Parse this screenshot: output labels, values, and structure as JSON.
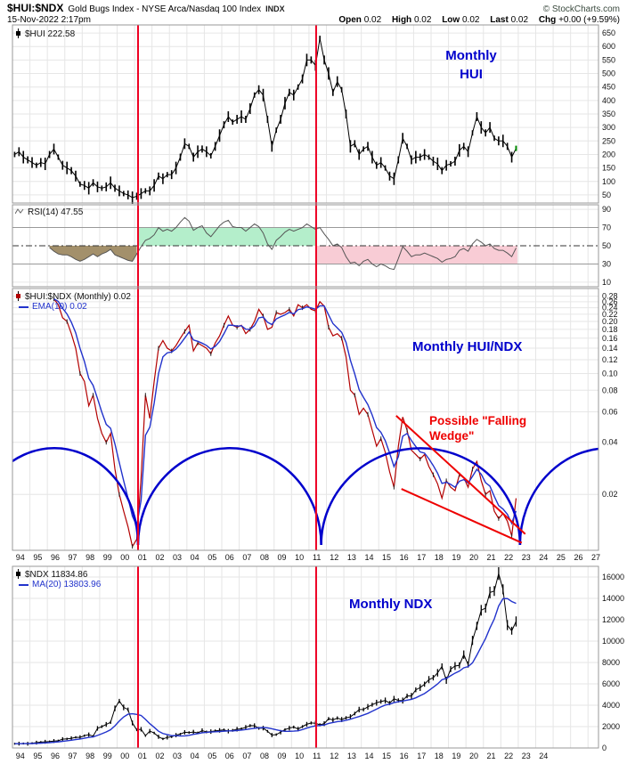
{
  "header": {
    "symbol": "$HUI:$NDX",
    "description": "Gold Bugs Index - NYSE Arca/Nasdaq 100 Index",
    "exchange": "INDX",
    "copyright": "© StockCharts.com",
    "datetime": "15-Nov-2022 2:17pm",
    "quote": {
      "open_label": "Open",
      "open": "0.02",
      "high_label": "High",
      "high": "0.02",
      "low_label": "Low",
      "low": "0.02",
      "last_label": "Last",
      "last": "0.02",
      "chg_label": "Chg",
      "chg": "+0.00 (+9.59%)"
    }
  },
  "annotations": {
    "monthly_hui_l1": "Monthly",
    "monthly_hui_l2": "HUI",
    "monthly_huindx": "Monthly HUI/NDX",
    "falling_wedge": "Possible \"Falling Wedge\"",
    "monthly_ndx": "Monthly NDX",
    "red_vlines": [
      2001.2,
      2011.41
    ],
    "red_vline_color": "#ee0022",
    "arcs": {
      "spans": [
        [
          1991.6,
          2001.2
        ],
        [
          2001.2,
          2011.7
        ],
        [
          2011.7,
          2023.1
        ],
        [
          2023.1,
          2033.2
        ]
      ],
      "peak_value": 0.037,
      "color": "#0000cc"
    },
    "wedge_lines": [
      [
        2016.0,
        0.057,
        2023.4,
        0.0118
      ],
      [
        2016.3,
        0.0215,
        2023.2,
        0.0105
      ]
    ],
    "wedge_color": "#ee0000"
  },
  "xaxis": {
    "top_labels": [
      "94",
      "95",
      "96",
      "97",
      "98",
      "99",
      "00",
      "01",
      "02",
      "03",
      "04",
      "05",
      "06",
      "07",
      "08",
      "09",
      "10",
      "11",
      "12",
      "13",
      "14",
      "15",
      "16",
      "17",
      "18",
      "19",
      "20",
      "21",
      "22",
      "23",
      "24",
      "25",
      "26",
      "27"
    ],
    "bottom_labels": [
      "94",
      "95",
      "96",
      "97",
      "98",
      "99",
      "00",
      "01",
      "02",
      "03",
      "04",
      "05",
      "06",
      "07",
      "08",
      "09",
      "10",
      "11",
      "12",
      "13",
      "14",
      "15",
      "16",
      "17",
      "18",
      "19",
      "20",
      "21",
      "22",
      "23",
      "24"
    ]
  },
  "chart_data": [
    {
      "name": "hui",
      "type": "candlestick",
      "title": "$HUI 222.58",
      "scale": "linear",
      "ylim": [
        20,
        680
      ],
      "yticks": [
        50,
        100,
        150,
        200,
        250,
        300,
        350,
        400,
        450,
        500,
        550,
        600,
        650
      ],
      "decimals": 0,
      "x_start": 1994.125,
      "x_step": 0.25,
      "values": [
        200,
        210,
        190,
        180,
        170,
        160,
        170,
        165,
        200,
        220,
        190,
        160,
        150,
        140,
        120,
        90,
        85,
        75,
        95,
        80,
        75,
        80,
        95,
        75,
        65,
        55,
        50,
        40,
        45,
        55,
        65,
        65,
        85,
        120,
        110,
        125,
        125,
        150,
        190,
        240,
        230,
        190,
        210,
        220,
        210,
        195,
        230,
        270,
        310,
        340,
        320,
        330,
        340,
        330,
        370,
        420,
        440,
        420,
        330,
        230,
        290,
        330,
        390,
        430,
        420,
        450,
        480,
        550,
        550,
        530,
        630,
        550,
        500,
        430,
        470,
        440,
        350,
        230,
        240,
        200,
        220,
        230,
        190,
        160,
        170,
        150,
        120,
        110,
        180,
        260,
        230,
        180,
        190,
        190,
        200,
        190,
        175,
        165,
        140,
        160,
        165,
        175,
        215,
        230,
        210,
        280,
        340,
        300,
        280,
        300,
        260,
        250,
        250,
        230,
        190,
        222.58
      ]
    },
    {
      "name": "rsi",
      "type": "line",
      "title": "RSI(14) 47.55",
      "scale": "linear",
      "ylim": [
        5,
        95
      ],
      "yticks": [
        10,
        30,
        50,
        70,
        90
      ],
      "decimals": 0,
      "x_start": 1996.125,
      "x_step": 0.25,
      "fill_end": 2001.2,
      "fill_color": "#a3906b",
      "bands": [
        {
          "x1": 2001.2,
          "x2": 2011.41,
          "y1": 50,
          "y2": 70,
          "color": "#b4eecb"
        },
        {
          "x1": 2011.41,
          "x2": 2022.95,
          "y1": 30,
          "y2": 50,
          "color": "#f8ccd5"
        }
      ],
      "values": [
        48,
        44,
        41,
        40,
        40,
        38,
        35,
        33,
        35,
        38,
        41,
        38,
        41,
        43,
        46,
        40,
        38,
        36,
        34,
        33,
        41,
        49,
        56,
        58,
        62,
        70,
        66,
        68,
        66,
        70,
        76,
        81,
        77,
        67,
        70,
        72,
        64,
        60,
        66,
        72,
        76,
        78,
        71,
        70,
        70,
        66,
        70,
        74,
        71,
        64,
        52,
        46,
        56,
        60,
        65,
        68,
        66,
        68,
        70,
        74,
        71,
        68,
        70,
        63,
        57,
        50,
        52,
        48,
        38,
        31,
        32,
        28,
        33,
        35,
        30,
        27,
        30,
        28,
        25,
        24,
        36,
        49,
        44,
        38,
        40,
        40,
        42,
        40,
        38,
        36,
        32,
        35,
        36,
        38,
        45,
        47,
        44,
        52,
        57,
        54,
        50,
        52,
        47,
        45,
        45,
        42,
        38,
        47.55
      ]
    },
    {
      "name": "hui_ndx_ratio",
      "type": "line",
      "title": "$HUI:$NDX (Monthly) 0.02",
      "ema_label": "EMA(10) 0.02",
      "scale": "log",
      "ylim": [
        0.0095,
        0.31
      ],
      "yticks": [
        0.02,
        0.04,
        0.06,
        0.08,
        0.1,
        0.12,
        0.14,
        0.16,
        0.18,
        0.2,
        0.22,
        0.24,
        0.26,
        0.28
      ],
      "decimals": 2,
      "x_start": 1996.375,
      "x_step": 0.25,
      "values": [
        0.27,
        0.25,
        0.21,
        0.2,
        0.17,
        0.14,
        0.1,
        0.09,
        0.065,
        0.075,
        0.055,
        0.045,
        0.04,
        0.045,
        0.028,
        0.02,
        0.016,
        0.013,
        0.01,
        0.011,
        0.025,
        0.075,
        0.055,
        0.09,
        0.14,
        0.155,
        0.14,
        0.135,
        0.145,
        0.16,
        0.175,
        0.19,
        0.135,
        0.15,
        0.145,
        0.14,
        0.13,
        0.15,
        0.165,
        0.19,
        0.215,
        0.19,
        0.185,
        0.19,
        0.17,
        0.18,
        0.2,
        0.235,
        0.215,
        0.18,
        0.185,
        0.225,
        0.22,
        0.225,
        0.235,
        0.215,
        0.25,
        0.24,
        0.25,
        0.235,
        0.23,
        0.26,
        0.245,
        0.185,
        0.165,
        0.17,
        0.16,
        0.125,
        0.08,
        0.075,
        0.058,
        0.063,
        0.058,
        0.047,
        0.038,
        0.042,
        0.035,
        0.027,
        0.022,
        0.038,
        0.056,
        0.047,
        0.036,
        0.034,
        0.032,
        0.034,
        0.029,
        0.026,
        0.023,
        0.019,
        0.024,
        0.022,
        0.021,
        0.026,
        0.025,
        0.022,
        0.028,
        0.031,
        0.024,
        0.02,
        0.021,
        0.016,
        0.0145,
        0.0155,
        0.014,
        0.0115,
        0.019
      ]
    },
    {
      "name": "ndx",
      "type": "candlestick",
      "title": "$NDX 11834.86",
      "ma_label": "MA(20) 13803.96",
      "scale": "linear",
      "ylim": [
        0,
        17000
      ],
      "yticks": [
        0,
        2000,
        4000,
        6000,
        8000,
        10000,
        12000,
        14000,
        16000
      ],
      "decimals": 0,
      "x_start": 1994.125,
      "x_step": 0.25,
      "values": [
        400,
        410,
        420,
        400,
        450,
        500,
        550,
        576,
        600,
        650,
        680,
        821,
        850,
        900,
        1000,
        990,
        1150,
        1250,
        1100,
        1836,
        2000,
        2200,
        2400,
        3707,
        4400,
        3800,
        3600,
        2341,
        1700,
        1750,
        1150,
        1577,
        1400,
        1050,
        850,
        984,
        1050,
        1200,
        1300,
        1467,
        1440,
        1490,
        1410,
        1621,
        1500,
        1530,
        1600,
        1645,
        1700,
        1570,
        1650,
        1756,
        1790,
        1930,
        2090,
        2085,
        1840,
        1860,
        1560,
        1212,
        1250,
        1480,
        1720,
        1860,
        1960,
        1770,
        2000,
        2218,
        2340,
        2310,
        2170,
        2278,
        2740,
        2620,
        2800,
        2660,
        2820,
        2910,
        3220,
        3592,
        3600,
        3850,
        4050,
        4236,
        4340,
        4440,
        4200,
        4593,
        4450,
        4440,
        4870,
        4863,
        5440,
        5650,
        5970,
        6396,
        6580,
        7040,
        7630,
        6330,
        7380,
        7670,
        7740,
        8733,
        7810,
        10060,
        11420,
        12888,
        13090,
        14550,
        14690,
        16320,
        14840,
        11500,
        10970,
        11834.86
      ]
    }
  ]
}
